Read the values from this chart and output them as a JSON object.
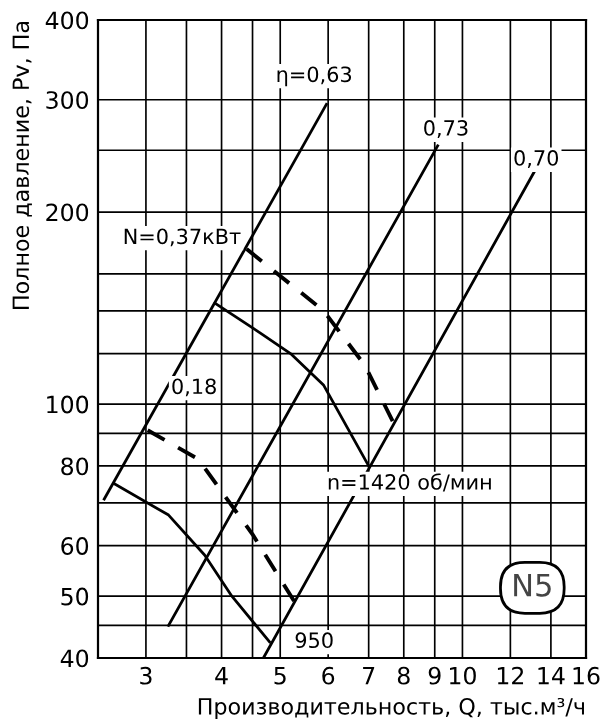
{
  "chart_data": {
    "type": "line",
    "xlabel": "Производительность, Q, тыс.м³/ч",
    "ylabel": "Полное давление, Pv, Па",
    "log": "xy",
    "grid": true,
    "marker": "none",
    "xlim": [
      2.5,
      16
    ],
    "ylim": [
      40,
      400
    ],
    "xticks": [
      3,
      {
        "value": 3.5,
        "label": null
      },
      4,
      {
        "value": 4.5,
        "label": null
      },
      5,
      6,
      7,
      8,
      9,
      10,
      12,
      14,
      16
    ],
    "yticks": [
      40,
      {
        "value": 45,
        "label": null
      },
      50,
      60,
      {
        "value": 70,
        "label": null
      },
      80,
      {
        "value": 90,
        "label": null
      },
      100,
      {
        "value": 120,
        "label": null
      },
      {
        "value": 140,
        "label": null
      },
      {
        "value": 160,
        "label": null
      },
      200,
      {
        "value": 250,
        "label": null
      },
      300,
      400
    ],
    "series": [
      {
        "color": "#000000",
        "line_style": "solid",
        "x": [
          2.66,
          3.27,
          3.75,
          4.16,
          4.8
        ],
        "values": [
          75,
          67,
          58,
          50,
          42.4
        ]
      },
      {
        "color": "#000000",
        "line_style": "dashed",
        "x": [
          3.02,
          3.66,
          4.5,
          5.28
        ],
        "values": [
          91,
          82,
          62.5,
          49
        ]
      },
      {
        "color": "#000000",
        "line_style": "solid",
        "x": [
          3.9,
          4.65,
          5.2,
          5.9,
          7.0
        ],
        "values": [
          144,
          129,
          120,
          107,
          80
        ]
      },
      {
        "color": "#000000",
        "line_style": "dashed",
        "x": [
          4.4,
          5.9,
          6.9,
          7.67
        ],
        "values": [
          175,
          140,
          115,
          94
        ]
      },
      {
        "color": "#000000",
        "line_style": "solid",
        "x": [
          2.56,
          5.96
        ],
        "values": [
          71,
          295
        ]
      },
      {
        "color": "#000000",
        "line_style": "solid",
        "x": [
          3.27,
          9.1
        ],
        "values": [
          45,
          254
        ]
      },
      {
        "color": "#000000",
        "line_style": "solid",
        "x": [
          4.69,
          13.2
        ],
        "values": [
          40,
          233
        ]
      }
    ],
    "annotations": [
      "η=0,63",
      "0,73",
      "0,70",
      "N=0,37кВт",
      "0,18",
      "n=1420 об/мин",
      "950",
      "N5"
    ]
  }
}
